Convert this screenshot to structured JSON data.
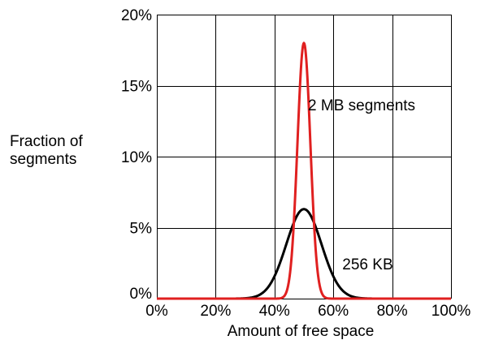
{
  "chart_data": {
    "type": "line",
    "xlabel": "Amount of free space",
    "ylabel_lines": [
      "Fraction of",
      "segments"
    ],
    "xlim": [
      0,
      100
    ],
    "ylim": [
      0,
      20
    ],
    "x_ticks": [
      0,
      20,
      40,
      60,
      80,
      100
    ],
    "x_tick_labels": [
      "0%",
      "20%",
      "40%",
      "60%",
      "80%",
      "100%"
    ],
    "y_ticks": [
      0,
      5,
      10,
      15,
      20
    ],
    "y_tick_labels": [
      "0%",
      "5%",
      "10%",
      "15%",
      "20%"
    ],
    "grid": true,
    "series": [
      {
        "color": "#000000",
        "distribution": {
          "type": "gaussian",
          "mean": 50,
          "peak": 6.3,
          "std": 6.0
        }
      },
      {
        "color": "#e02020",
        "distribution": {
          "type": "gaussian",
          "mean": 50,
          "peak": 18.0,
          "std": 2.2
        }
      }
    ],
    "annotations": [
      {
        "text": "2 MB segments",
        "x": 63,
        "y": 13.6
      },
      {
        "text": "256 KB",
        "x": 65,
        "y": 2.4
      }
    ]
  }
}
